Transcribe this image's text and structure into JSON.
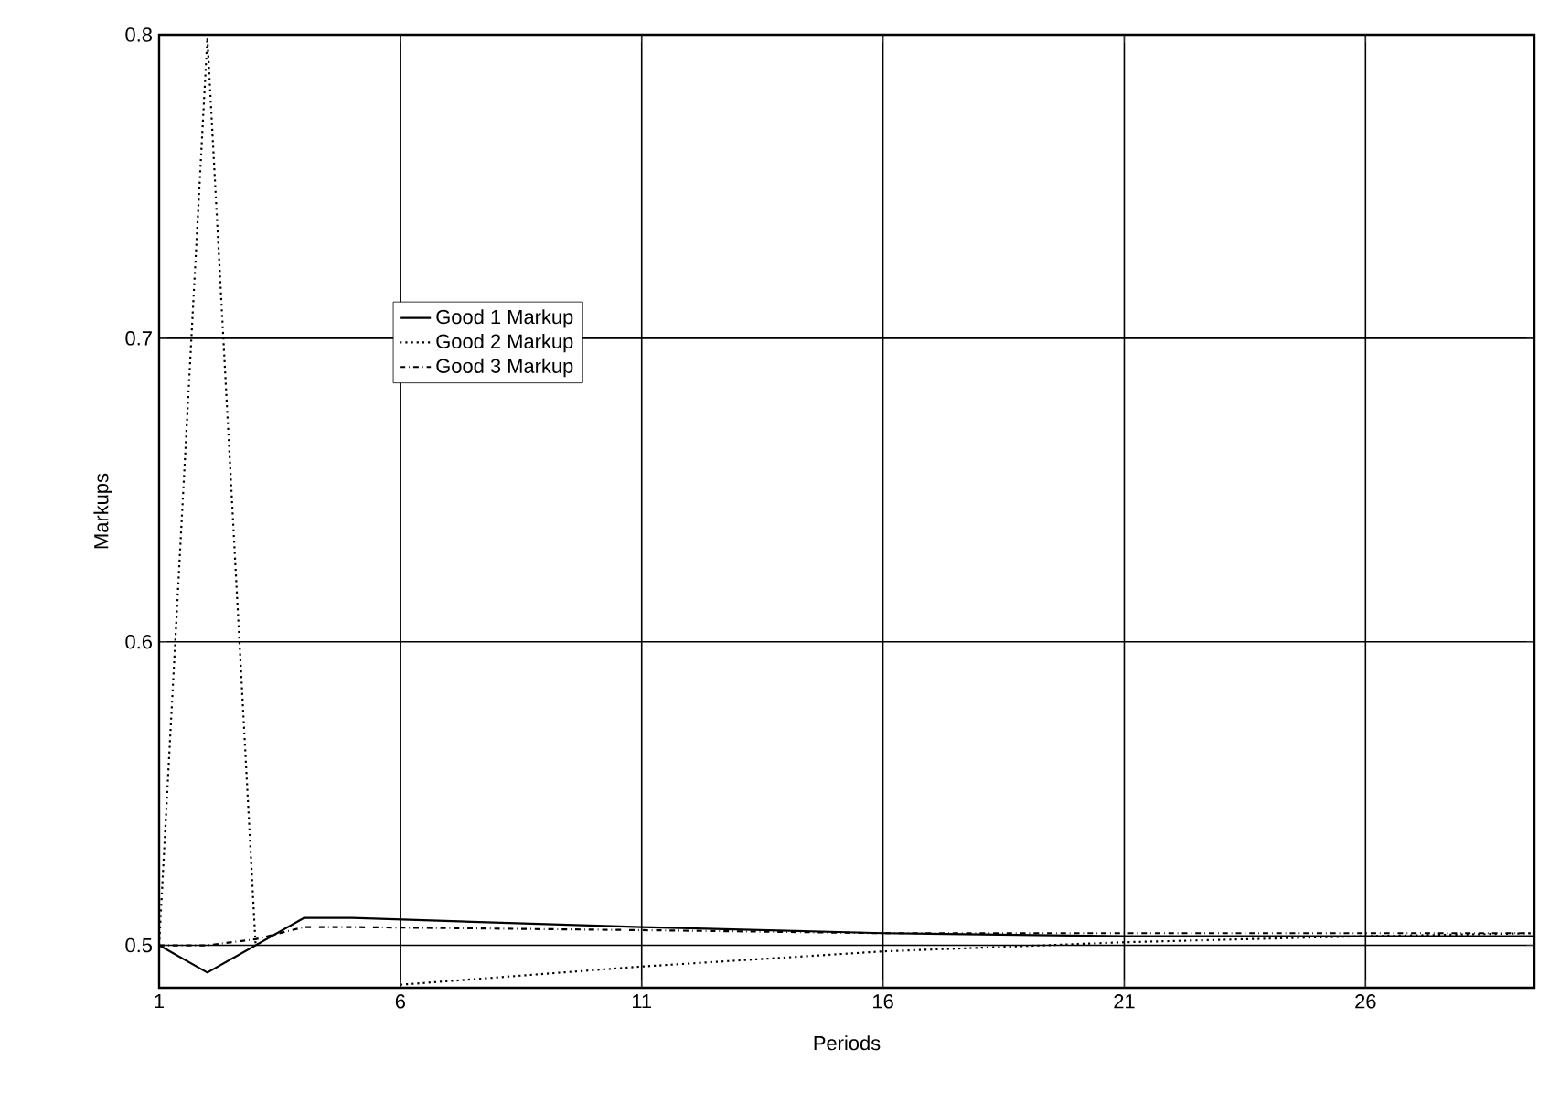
{
  "chart_data": {
    "type": "line",
    "xlabel": "Periods",
    "ylabel": "Markups",
    "xlim": [
      1,
      29.5
    ],
    "ylim": [
      0.486,
      0.8
    ],
    "xticks": [
      1,
      6,
      11,
      16,
      21,
      26
    ],
    "yticks": [
      0.5,
      0.6,
      0.7,
      0.8
    ],
    "grid": true,
    "legend": "center left",
    "series": [
      {
        "name": "Good 1 Markup",
        "color": "#000000",
        "line_style": "solid",
        "x": [
          1,
          2,
          3,
          4,
          5,
          11,
          16,
          21,
          26,
          29.5
        ],
        "values": [
          0.5,
          0.491,
          0.5,
          0.509,
          0.509,
          0.506,
          0.504,
          0.503,
          0.503,
          0.503
        ]
      },
      {
        "name": "Good 2 Markup",
        "color": "#000000",
        "line_style": "dotted",
        "x": [
          1,
          2,
          3,
          3.8,
          5,
          6,
          11,
          16,
          21,
          26,
          29.5
        ],
        "values": [
          0.5,
          0.799,
          0.5,
          null,
          null,
          0.487,
          0.493,
          0.498,
          0.501,
          0.503,
          0.504
        ]
      },
      {
        "name": "Good 3 Markup",
        "color": "#000000",
        "line_style": "dashdotted",
        "x": [
          1,
          2,
          3,
          4,
          5,
          11,
          16,
          21,
          26,
          29.5
        ],
        "values": [
          0.5,
          0.5,
          0.502,
          0.506,
          0.506,
          0.505,
          0.504,
          0.504,
          0.504,
          0.504
        ]
      }
    ]
  }
}
